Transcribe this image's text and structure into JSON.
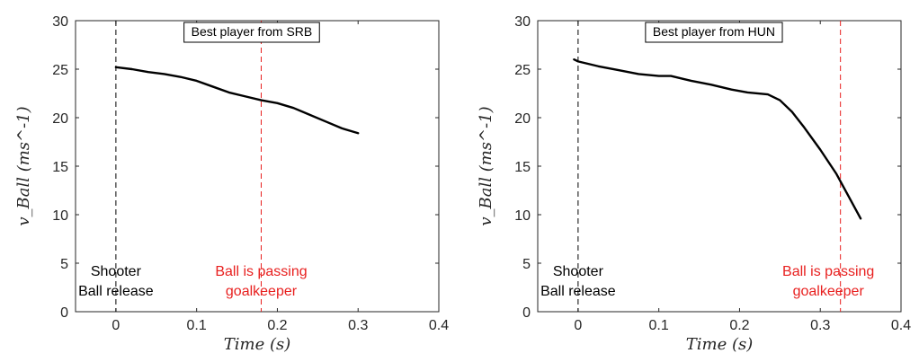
{
  "chart_data": [
    {
      "type": "line",
      "title": "Best player from SRB",
      "xlabel": "Time (s)",
      "ylabel": "v_Ball (ms^-1)",
      "xlim": [
        -0.05,
        0.4
      ],
      "ylim": [
        0,
        30
      ],
      "xticks": [
        0,
        0.1,
        0.2,
        0.3,
        0.4
      ],
      "xtick_labels": [
        "0",
        "0.1",
        "0.2",
        "0.3",
        "0.4"
      ],
      "yticks": [
        0,
        5,
        10,
        15,
        20,
        25,
        30
      ],
      "ytick_labels": [
        "0",
        "5",
        "10",
        "15",
        "20",
        "25",
        "30"
      ],
      "grid": false,
      "series": [
        {
          "color": "#000000",
          "x": [
            0,
            0.02,
            0.04,
            0.06,
            0.08,
            0.1,
            0.12,
            0.14,
            0.16,
            0.18,
            0.2,
            0.22,
            0.24,
            0.26,
            0.28,
            0.3
          ],
          "y": [
            25.2,
            25.0,
            24.7,
            24.5,
            24.2,
            23.8,
            23.2,
            22.6,
            22.2,
            21.8,
            21.5,
            21.0,
            20.3,
            19.6,
            18.9,
            18.4
          ]
        }
      ],
      "vlines": [
        {
          "x": 0,
          "color": "#000000",
          "style": "dashed"
        },
        {
          "x": 0.18,
          "color": "#e8201f",
          "style": "dashed"
        }
      ],
      "annotations": [
        {
          "lines": [
            "Shooter",
            "Ball release"
          ],
          "x": 0.0,
          "y": 2.8,
          "color": "#000000"
        },
        {
          "lines": [
            "Ball is passing",
            "goalkeeper"
          ],
          "x": 0.18,
          "y": 2.8,
          "color": "#e8201f"
        }
      ]
    },
    {
      "type": "line",
      "title": "Best player from HUN",
      "xlabel": "Time (s)",
      "ylabel": "v_Ball (ms^-1)",
      "xlim": [
        -0.05,
        0.4
      ],
      "ylim": [
        0,
        30
      ],
      "xticks": [
        0,
        0.1,
        0.2,
        0.3,
        0.4
      ],
      "xtick_labels": [
        "0",
        "0.1",
        "0.2",
        "0.3",
        "0.4"
      ],
      "yticks": [
        0,
        5,
        10,
        15,
        20,
        25,
        30
      ],
      "ytick_labels": [
        "0",
        "5",
        "10",
        "15",
        "20",
        "25",
        "30"
      ],
      "grid": false,
      "series": [
        {
          "color": "#000000",
          "x": [
            -0.005,
            0.0,
            0.025,
            0.05,
            0.075,
            0.1,
            0.115,
            0.14,
            0.165,
            0.19,
            0.21,
            0.235,
            0.25,
            0.265,
            0.28,
            0.3,
            0.32,
            0.335,
            0.35
          ],
          "y": [
            26.0,
            25.8,
            25.3,
            24.9,
            24.5,
            24.3,
            24.3,
            23.8,
            23.4,
            22.9,
            22.6,
            22.4,
            21.8,
            20.6,
            19.0,
            16.7,
            14.2,
            11.9,
            9.6
          ]
        }
      ],
      "vlines": [
        {
          "x": 0,
          "color": "#000000",
          "style": "dashed"
        },
        {
          "x": 0.325,
          "color": "#e8201f",
          "style": "dashed"
        }
      ],
      "annotations": [
        {
          "lines": [
            "Shooter",
            "Ball release"
          ],
          "x": 0.0,
          "y": 2.8,
          "color": "#000000"
        },
        {
          "lines": [
            "Ball is passing",
            "goalkeeper"
          ],
          "x": 0.31,
          "y": 2.8,
          "color": "#e8201f"
        }
      ]
    }
  ]
}
